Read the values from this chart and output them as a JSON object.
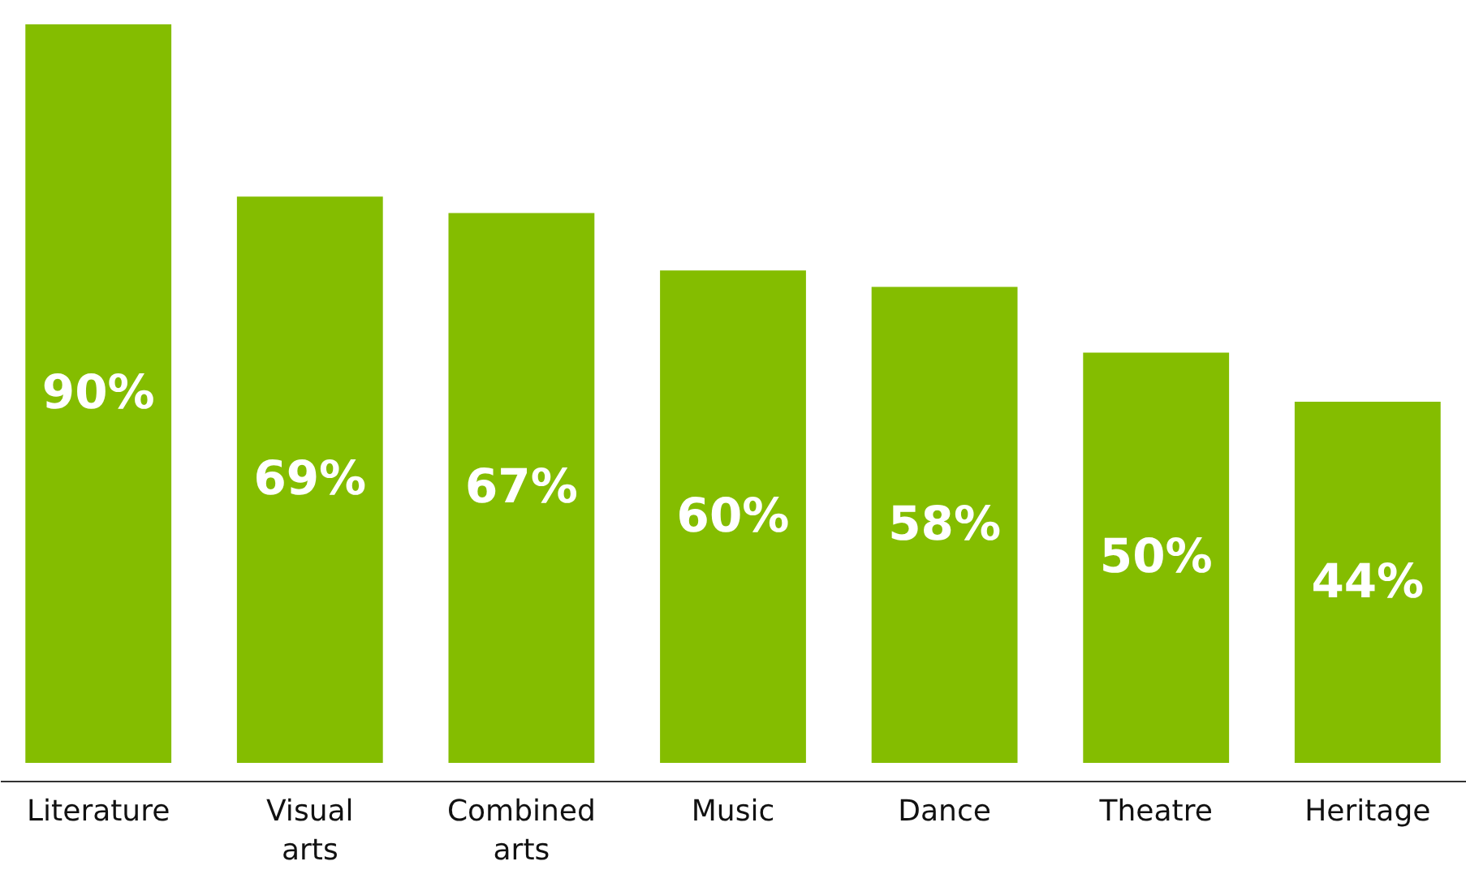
{
  "chart_data": {
    "type": "bar",
    "categories": [
      "Literature",
      "Visual arts",
      "Combined arts",
      "Music",
      "Dance",
      "Theatre",
      "Heritage"
    ],
    "values": [
      90,
      69,
      67,
      60,
      58,
      50,
      44
    ],
    "value_labels": [
      "90%",
      "69%",
      "67%",
      "60%",
      "58%",
      "50%",
      "44%"
    ],
    "color": "#84bd00",
    "tick_labels": "x"
  }
}
